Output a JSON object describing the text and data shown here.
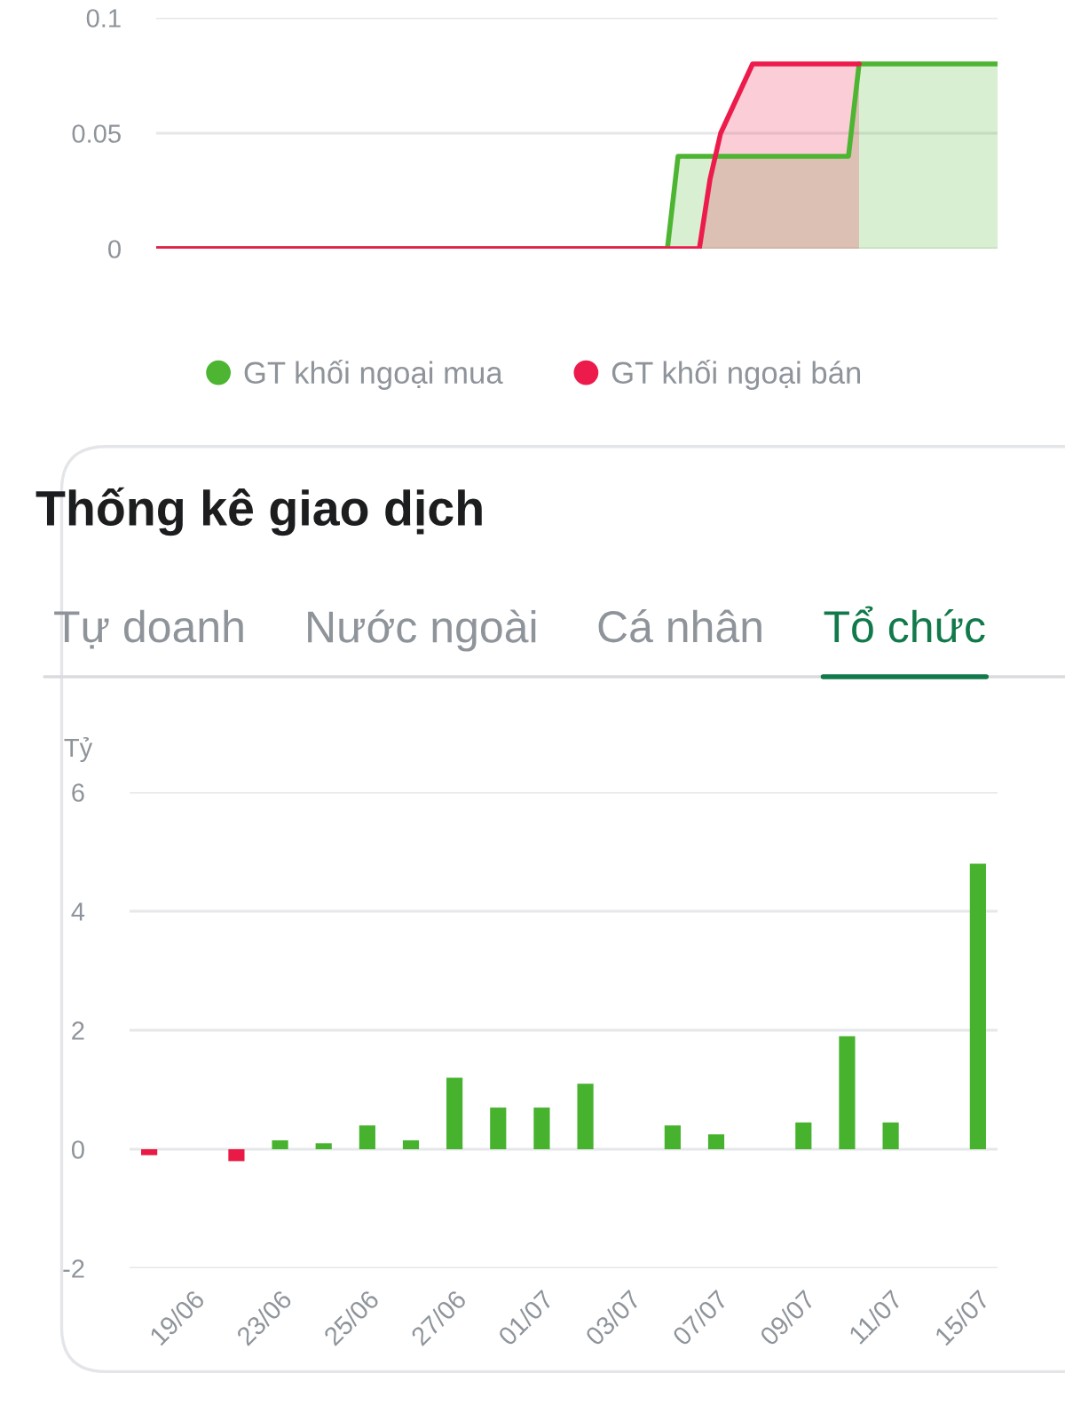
{
  "chart_data": [
    {
      "type": "area",
      "categories": [
        null,
        null,
        null,
        null,
        null,
        null,
        null,
        null,
        null,
        null,
        null,
        null,
        null,
        null,
        null,
        null,
        null,
        null,
        null,
        null,
        null,
        null,
        null,
        null,
        null,
        null,
        null,
        null,
        null,
        null,
        null,
        null,
        null,
        null,
        null,
        null,
        null,
        null,
        null,
        null,
        null,
        null,
        null,
        null,
        null,
        null,
        null,
        null,
        null,
        null,
        null,
        null,
        null,
        null,
        null,
        null,
        null,
        null,
        null,
        null,
        null,
        null,
        null,
        null,
        null,
        null,
        null,
        null,
        null,
        null,
        null,
        null,
        null,
        null,
        null,
        null,
        null,
        null,
        null,
        null
      ],
      "series": [
        {
          "name": "GT khối ngoại mua",
          "color": "#4db532",
          "values": [
            0,
            0,
            0,
            0,
            0,
            0,
            0,
            0,
            0,
            0,
            0,
            0,
            0,
            0,
            0,
            0,
            0,
            0,
            0,
            0,
            0,
            0,
            0,
            0,
            0,
            0,
            0,
            0,
            0,
            0,
            0,
            0,
            0,
            0,
            0,
            0,
            0,
            0,
            0,
            0,
            0,
            0,
            0,
            0,
            0,
            0,
            0,
            0,
            0,
            0.04,
            0.04,
            0.04,
            0.04,
            0.04,
            0.04,
            0.04,
            0.04,
            0.04,
            0.04,
            0.04,
            0.04,
            0.04,
            0.04,
            0.04,
            0.04,
            0.04,
            0.08,
            0.08,
            0.08,
            0.08,
            0.08,
            0.08,
            0.08,
            0.08,
            0.08,
            0.08,
            0.08,
            0.08,
            0.08,
            0.08
          ]
        },
        {
          "name": "GT khối ngoại bán",
          "color": "#ec1b4b",
          "values": [
            0,
            0,
            0,
            0,
            0,
            0,
            0,
            0,
            0,
            0,
            0,
            0,
            0,
            0,
            0,
            0,
            0,
            0,
            0,
            0,
            0,
            0,
            0,
            0,
            0,
            0,
            0,
            0,
            0,
            0,
            0,
            0,
            0,
            0,
            0,
            0,
            0,
            0,
            0,
            0,
            0,
            0,
            0,
            0,
            0,
            0,
            0,
            0,
            0,
            0,
            0,
            0,
            0.03,
            0.05,
            0.06,
            0.07,
            0.08,
            0.08,
            0.08,
            0.08,
            0.08,
            0.08,
            0.08,
            0.08,
            0.08,
            0.08,
            0.08,
            null,
            null,
            null,
            null,
            null,
            null,
            null,
            null,
            null,
            null,
            null,
            null,
            null
          ]
        }
      ],
      "ylim": [
        0,
        0.1
      ],
      "yticks": [
        0,
        0.05,
        0.1
      ],
      "grid": "y",
      "legend": "bottom",
      "tick_labels": "y"
    },
    {
      "type": "bar",
      "title": "Thống kê giao dịch",
      "subtitle": "Tổ chức",
      "annotations": [
        "Tự doanh",
        "Nước ngoài",
        "Cá nhân"
      ],
      "ylabel": "Tỷ",
      "categories": [
        null,
        "19/06",
        null,
        "23/06",
        null,
        "25/06",
        null,
        "27/06",
        null,
        "01/07",
        null,
        "03/07",
        null,
        "07/07",
        null,
        "09/07",
        null,
        "11/07",
        null,
        "15/07"
      ],
      "values": [
        -0.1,
        null,
        -0.2,
        0.15,
        0.1,
        0.4,
        0.15,
        1.2,
        0.7,
        0.7,
        1.1,
        null,
        0.4,
        0.25,
        null,
        0.45,
        1.9,
        0.45,
        null,
        4.8
      ],
      "colors": [
        "#e91a45",
        null,
        "#e91a45",
        "#46b22d",
        "#46b22d",
        "#46b22d",
        "#46b22d",
        "#46b22d",
        "#46b22d",
        "#46b22d",
        "#46b22d",
        null,
        "#46b22d",
        "#46b22d",
        null,
        "#46b22d",
        "#46b22d",
        "#46b22d",
        null,
        "#46b22d"
      ],
      "ylim": [
        -2,
        6
      ],
      "yticks": [
        -2,
        0,
        2,
        4,
        6
      ],
      "grid": "y"
    }
  ]
}
